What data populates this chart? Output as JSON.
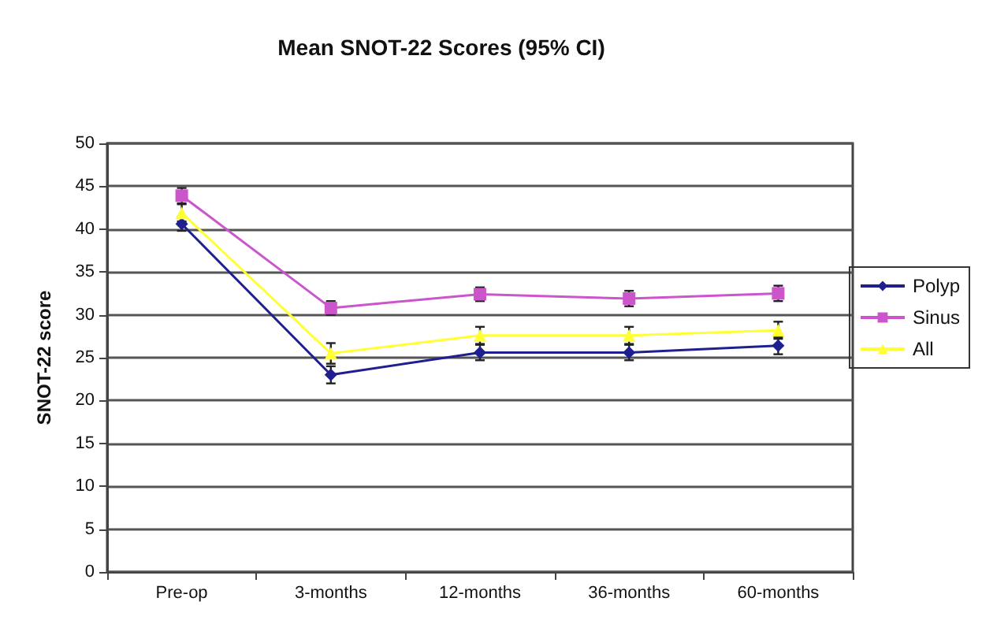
{
  "chart_data": {
    "type": "line",
    "title": "Mean SNOT-22 Scores (95% CI)",
    "ylabel": "SNOT-22 score",
    "categories": [
      "Pre-op",
      "3-months",
      "12-months",
      "36-months",
      "60-months"
    ],
    "series": [
      {
        "name": "Polyp",
        "color": "#1f1f8f",
        "marker": "diamond",
        "values": [
          40.6,
          23,
          25.6,
          25.6,
          26.4
        ],
        "errors": [
          0.8,
          1,
          0.9,
          0.9,
          1
        ]
      },
      {
        "name": "Sinus",
        "color": "#cc55cc",
        "marker": "square",
        "values": [
          43.9,
          30.8,
          32.4,
          31.9,
          32.5
        ],
        "errors": [
          0.9,
          0.8,
          0.8,
          0.9,
          0.9
        ]
      },
      {
        "name": "All",
        "color": "#ffff33",
        "marker": "triangle",
        "values": [
          41.9,
          25.5,
          27.6,
          27.6,
          28.2
        ],
        "errors": [
          1,
          1.2,
          1,
          1,
          1
        ]
      }
    ],
    "ylim": [
      0,
      50
    ],
    "yticks": [
      0,
      5,
      10,
      15,
      20,
      25,
      30,
      35,
      40,
      45,
      50
    ],
    "grid": "y",
    "legend": "right"
  }
}
